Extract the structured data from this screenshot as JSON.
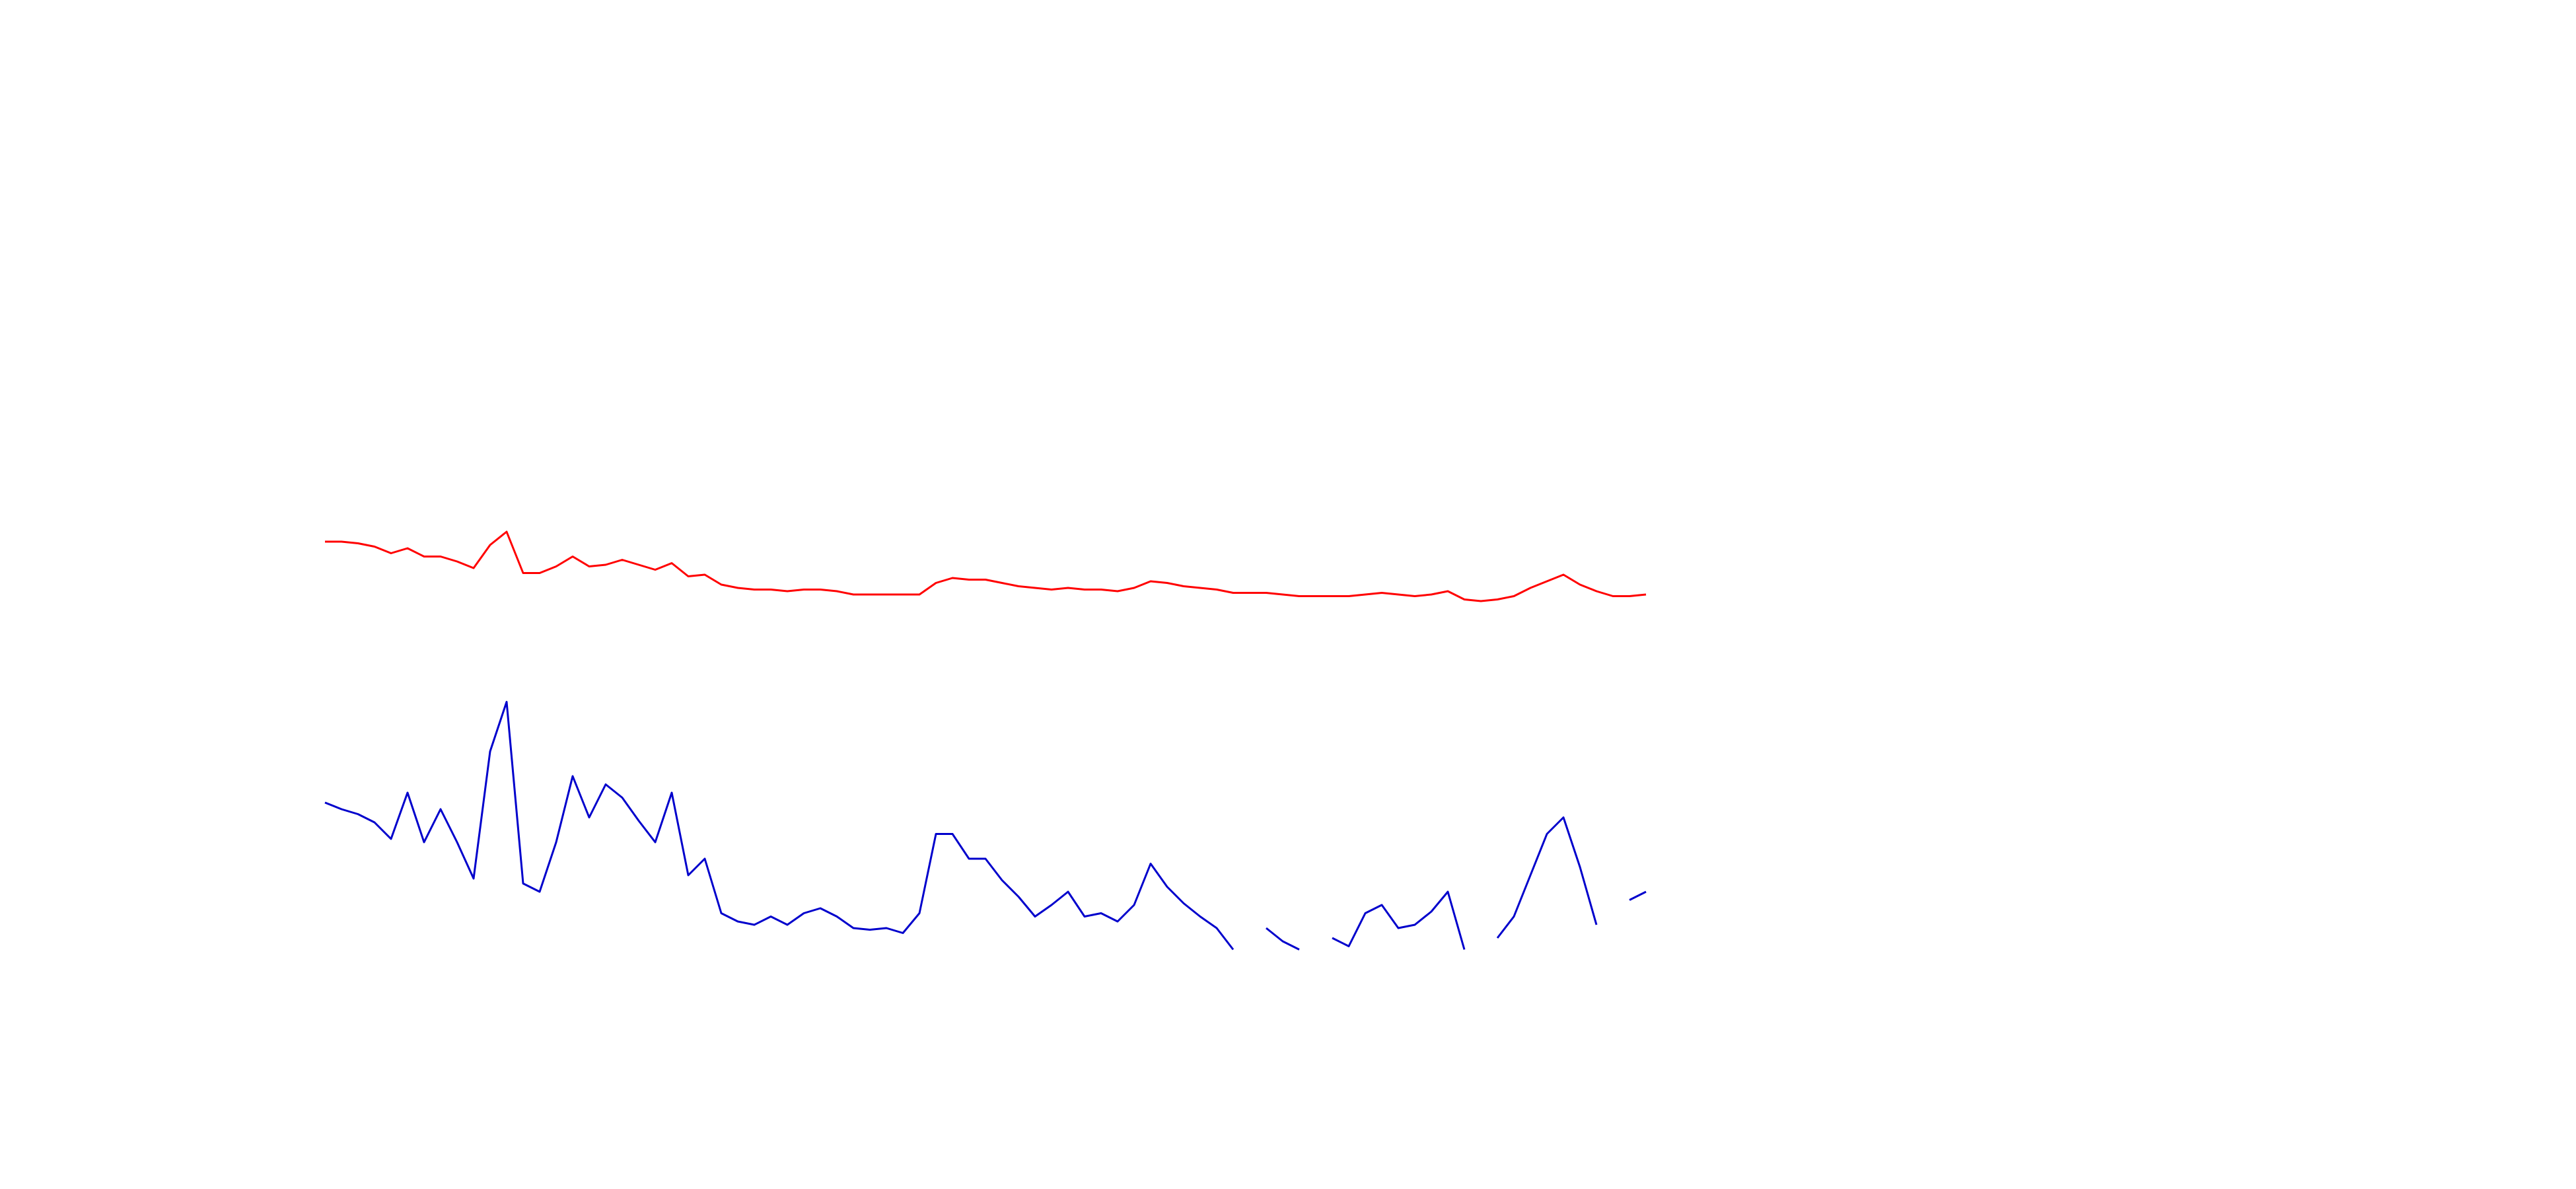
{
  "chart_data": {
    "type": "line",
    "x": [
      0,
      1,
      2,
      3,
      4,
      5,
      6,
      7,
      8,
      9,
      10,
      11,
      12,
      13,
      14,
      15,
      16,
      17,
      18,
      19,
      20,
      21,
      22,
      23,
      24,
      25,
      26,
      27,
      28,
      29,
      30,
      31,
      32,
      33,
      34,
      35,
      36,
      37,
      38,
      39,
      40,
      41,
      42,
      43,
      44,
      45,
      46,
      47,
      48,
      49,
      50,
      51,
      52,
      53,
      54,
      55,
      56,
      57,
      58,
      59,
      60,
      61,
      62,
      63,
      64,
      65,
      66,
      67,
      68,
      69,
      70,
      71,
      72,
      73,
      74,
      75,
      76,
      77,
      78,
      79,
      80
    ],
    "xlim": [
      0,
      80
    ],
    "ylim": [
      0,
      600
    ],
    "series": [
      {
        "color": "#ff0000",
        "values": [
          272,
          272,
          271,
          269,
          265,
          268,
          263,
          263,
          260,
          256,
          270,
          278,
          253,
          253,
          257,
          263,
          257,
          258,
          261,
          258,
          255,
          259,
          251,
          252,
          246,
          244,
          243,
          243,
          242,
          243,
          243,
          242,
          240,
          240,
          240,
          240,
          240,
          247,
          250,
          249,
          249,
          247,
          245,
          244,
          243,
          244,
          243,
          243,
          242,
          244,
          248,
          247,
          245,
          244,
          243,
          241,
          241,
          241,
          240,
          239,
          239,
          239,
          239,
          240,
          241,
          240,
          239,
          240,
          242,
          237,
          236,
          237,
          239,
          244,
          248,
          252,
          246,
          242,
          239,
          239,
          240
        ]
      },
      {
        "color": "#0000cc",
        "values": [
          114,
          110,
          107,
          102,
          92,
          120,
          90,
          110,
          90,
          68,
          145,
          175,
          65,
          60,
          90,
          130,
          105,
          125,
          117,
          103,
          90,
          120,
          70,
          80,
          47,
          42,
          40,
          45,
          40,
          47,
          50,
          45,
          38,
          37,
          38,
          35,
          47,
          95,
          95,
          80,
          80,
          67,
          57,
          45,
          52,
          60,
          45,
          47,
          42,
          52,
          77,
          63,
          53,
          45,
          38,
          25,
          null,
          38,
          30,
          25,
          null,
          32,
          27,
          47,
          52,
          38,
          40,
          48,
          60,
          25,
          null,
          32,
          45,
          70,
          95,
          105,
          75,
          40,
          null,
          55,
          60
        ]
      }
    ]
  }
}
